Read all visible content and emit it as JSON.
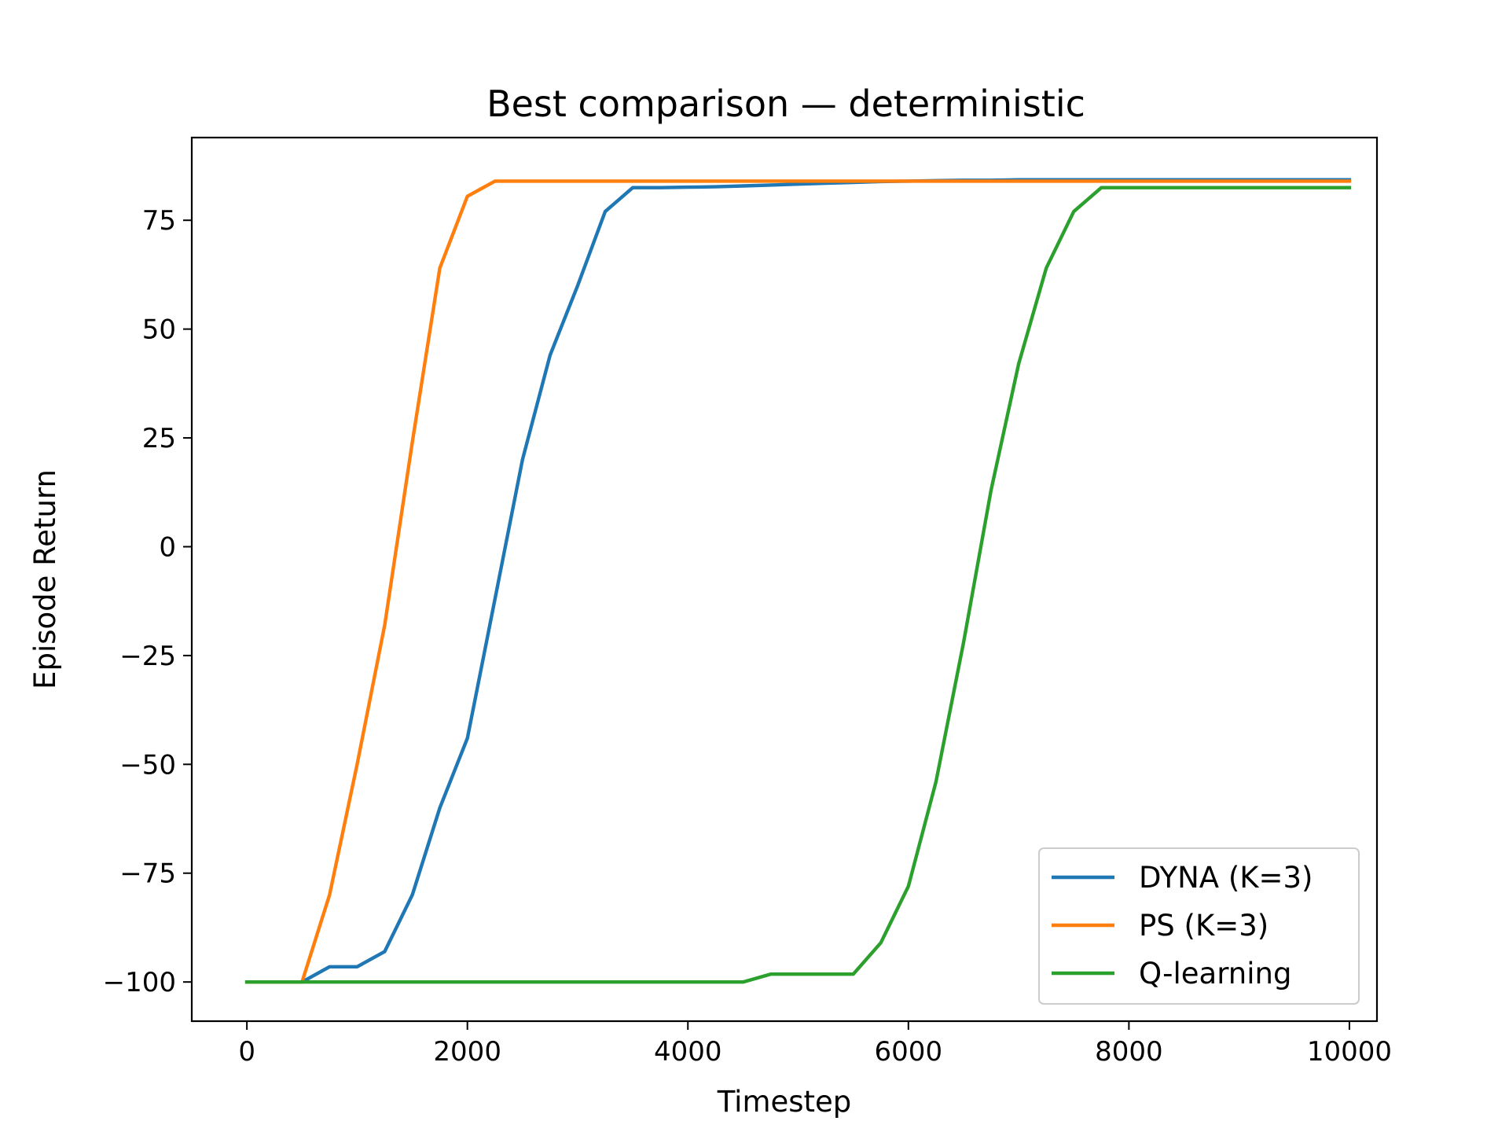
{
  "chart_data": {
    "type": "line",
    "title": "Best comparison — deterministic",
    "xlabel": "Timestep",
    "ylabel": "Episode Return",
    "xlim": [
      -500,
      10250
    ],
    "ylim": [
      -109,
      94
    ],
    "xticks": [
      0,
      2000,
      4000,
      6000,
      8000,
      10000
    ],
    "xtick_labels": [
      "0",
      "2000",
      "4000",
      "6000",
      "8000",
      "10000"
    ],
    "yticks": [
      -100,
      -75,
      -50,
      -25,
      0,
      25,
      50,
      75
    ],
    "ytick_labels": [
      "−100",
      "−75",
      "−50",
      "−25",
      "0",
      "25",
      "50",
      "75"
    ],
    "grid": false,
    "legend_position": "lower-right",
    "x": [
      0,
      250,
      500,
      750,
      1000,
      1250,
      1500,
      1750,
      2000,
      2250,
      2500,
      2750,
      3000,
      3250,
      3500,
      3750,
      4000,
      4250,
      4500,
      4750,
      5000,
      5250,
      5500,
      5750,
      6000,
      6250,
      6500,
      6750,
      7000,
      7250,
      7500,
      7750,
      8000,
      8250,
      8500,
      8750,
      9000,
      9250,
      9500,
      9750,
      10000
    ],
    "series": [
      {
        "name": "DYNA (K=3)",
        "color": "#1f77b4",
        "values": [
          -100,
          -100,
          -100,
          -96.5,
          -96.5,
          -93,
          -80,
          -60,
          -44,
          -12,
          20,
          44,
          60,
          77,
          82.5,
          82.5,
          82.6,
          82.7,
          82.9,
          83.1,
          83.3,
          83.5,
          83.7,
          83.9,
          84.0,
          84.1,
          84.2,
          84.2,
          84.3,
          84.3,
          84.3,
          84.3,
          84.3,
          84.3,
          84.3,
          84.3,
          84.3,
          84.3,
          84.3,
          84.3,
          84.3
        ]
      },
      {
        "name": "PS (K=3)",
        "color": "#ff7f0e",
        "values": [
          -100,
          -100,
          -100,
          -80,
          -50,
          -18,
          24,
          64,
          80.5,
          84,
          84,
          84,
          84,
          84,
          84,
          84,
          84,
          84,
          84,
          84,
          84,
          84,
          84,
          84,
          84,
          84,
          84,
          84,
          84,
          84,
          84,
          84,
          84,
          84,
          84,
          84,
          84,
          84,
          84,
          84,
          84
        ]
      },
      {
        "name": "Q-learning",
        "color": "#2ca02c",
        "values": [
          -100,
          -100,
          -100,
          -100,
          -100,
          -100,
          -100,
          -100,
          -100,
          -100,
          -100,
          -100,
          -100,
          -100,
          -100,
          -100,
          -100,
          -100,
          -100,
          -98.2,
          -98.2,
          -98.2,
          -98.2,
          -91,
          -78,
          -54,
          -22,
          13,
          42,
          64,
          77,
          82.5,
          82.5,
          82.5,
          82.5,
          82.5,
          82.5,
          82.5,
          82.5,
          82.5,
          82.5
        ]
      }
    ]
  }
}
